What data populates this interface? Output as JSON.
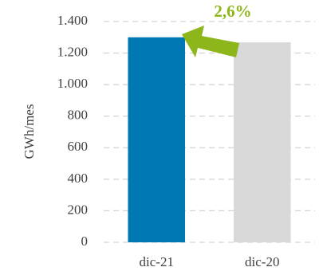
{
  "chart_data": {
    "type": "bar",
    "y_label": "GWh/mes",
    "categories": [
      "dic-21",
      "dic-20"
    ],
    "values": [
      1300,
      1268
    ],
    "colors": [
      "#0078b4",
      "#d9d9d9"
    ],
    "ylim": [
      0,
      1400
    ],
    "yticks": [
      0,
      200,
      400,
      600,
      800,
      {
        "value": 1000,
        "label": "1.000"
      },
      {
        "value": 1200,
        "label": "1.200"
      },
      {
        "value": 1400,
        "label": "1.400"
      }
    ],
    "grid": true,
    "annotation": "2,6%",
    "annotation_color": "#8db61a"
  }
}
